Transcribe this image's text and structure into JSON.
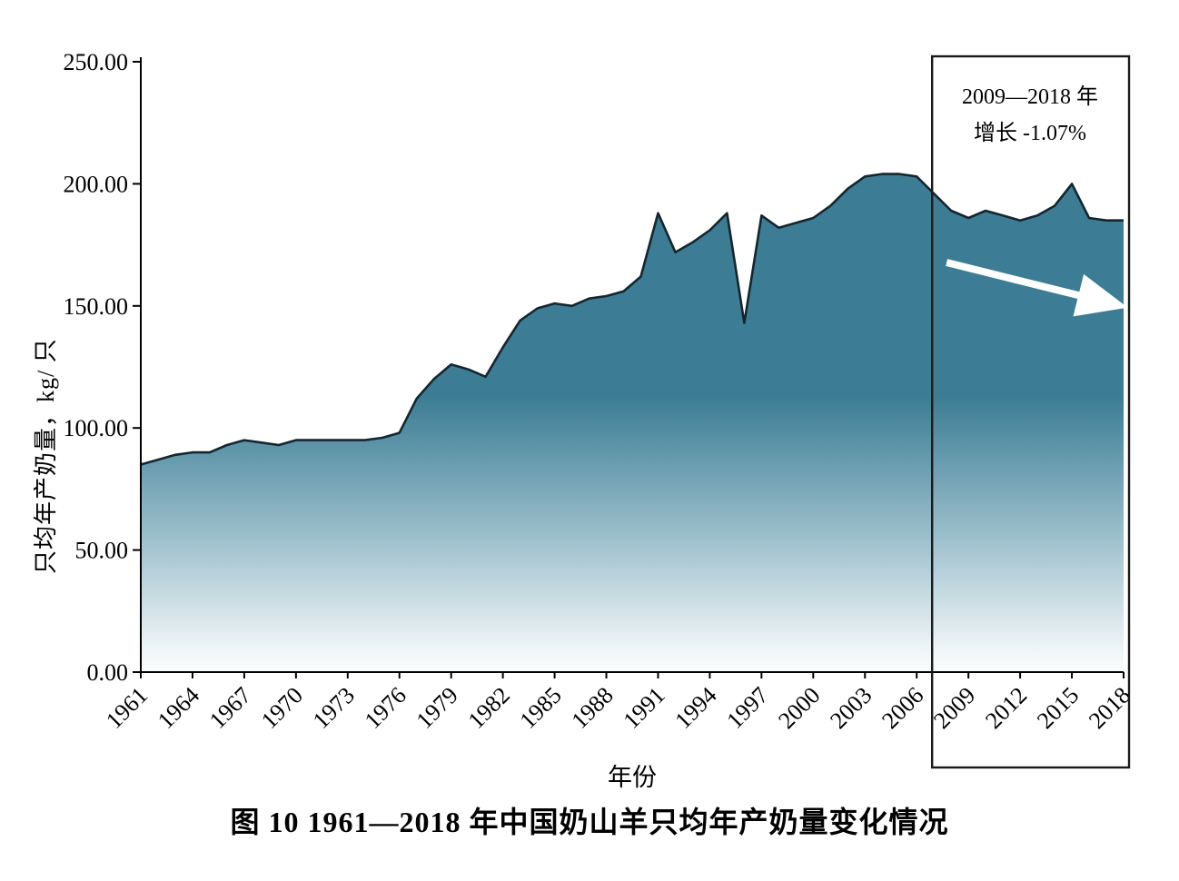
{
  "caption": "图 10  1961—2018 年中国奶山羊只均年产奶量变化情况",
  "annotation": {
    "line1": "2009—2018 年",
    "line2": "增长 -1.07%"
  },
  "chart_data": {
    "type": "area",
    "title": "",
    "xlabel": "年份",
    "ylabel": "只均年产奶量，kg/ 只",
    "ylim": [
      0,
      250
    ],
    "yticks": [
      0,
      50,
      100,
      150,
      200,
      250
    ],
    "ytick_labels": [
      "0.00",
      "50.00",
      "100.00",
      "150.00",
      "200.00",
      "250.00"
    ],
    "xticks": [
      1961,
      1964,
      1967,
      1970,
      1973,
      1976,
      1979,
      1982,
      1985,
      1988,
      1991,
      1994,
      1997,
      2000,
      2003,
      2006,
      2009,
      2012,
      2015,
      2018
    ],
    "x": [
      1961,
      1962,
      1963,
      1964,
      1965,
      1966,
      1967,
      1968,
      1969,
      1970,
      1971,
      1972,
      1973,
      1974,
      1975,
      1976,
      1977,
      1978,
      1979,
      1980,
      1981,
      1982,
      1983,
      1984,
      1985,
      1986,
      1987,
      1988,
      1989,
      1990,
      1991,
      1992,
      1993,
      1994,
      1995,
      1996,
      1997,
      1998,
      1999,
      2000,
      2001,
      2002,
      2003,
      2004,
      2005,
      2006,
      2007,
      2008,
      2009,
      2010,
      2011,
      2012,
      2013,
      2014,
      2015,
      2016,
      2017,
      2018
    ],
    "values": [
      85,
      87,
      89,
      90,
      90,
      93,
      95,
      94,
      93,
      95,
      95,
      95,
      95,
      95,
      96,
      98,
      112,
      120,
      126,
      124,
      121,
      133,
      144,
      149,
      151,
      150,
      153,
      154,
      156,
      162,
      188,
      172,
      176,
      181,
      188,
      143,
      187,
      182,
      184,
      186,
      191,
      198,
      203,
      204,
      204,
      203,
      196,
      189,
      186,
      189,
      187,
      185,
      187,
      191,
      200,
      186,
      185,
      185
    ],
    "highlight": {
      "from": 2009,
      "to": 2018
    },
    "area_color": "#3c7d95",
    "line_color": "#14262e",
    "axis_color": "#000000",
    "arrow_color": "#ffffff",
    "grid": false,
    "legend": "none"
  }
}
